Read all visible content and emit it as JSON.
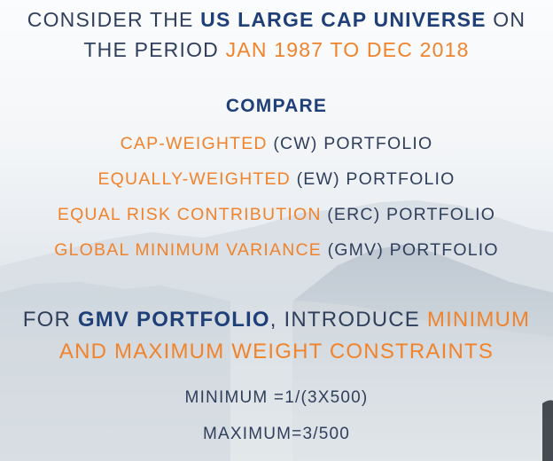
{
  "intro": {
    "line1": {
      "pre": "CONSIDER THE ",
      "em": "US LARGE CAP UNIVERSE",
      "post": " ON"
    },
    "line2": {
      "pre": "THE PERIOD ",
      "em": "JAN 1987 TO DEC 2018"
    }
  },
  "compare": {
    "heading": "COMPARE",
    "items": [
      {
        "name": "CAP-WEIGHTED",
        "abbr": " (CW) PORTFOLIO"
      },
      {
        "name": "EQUALLY-WEIGHTED",
        "abbr": " (EW) PORTFOLIO"
      },
      {
        "name": "EQUAL RISK CONTRIBUTION",
        "abbr": " (ERC) PORTFOLIO"
      },
      {
        "name": "GLOBAL MINIMUM VARIANCE",
        "abbr": " (GMV) PORTFOLIO"
      }
    ]
  },
  "constraint": {
    "line1": {
      "pre": "FOR ",
      "em": "GMV PORTFOLIO",
      "mid": ", INTRODUCE ",
      "hl": "MINIMUM"
    },
    "line2": "AND MAXIMUM WEIGHT CONSTRAINTS"
  },
  "bounds": {
    "minimum": "MINIMUM =1/(3X500)",
    "maximum": "MAXIMUM=3/500"
  },
  "colors": {
    "text": "#2f3f5c",
    "navy": "#1f3f78",
    "orange": "#f0832b"
  }
}
